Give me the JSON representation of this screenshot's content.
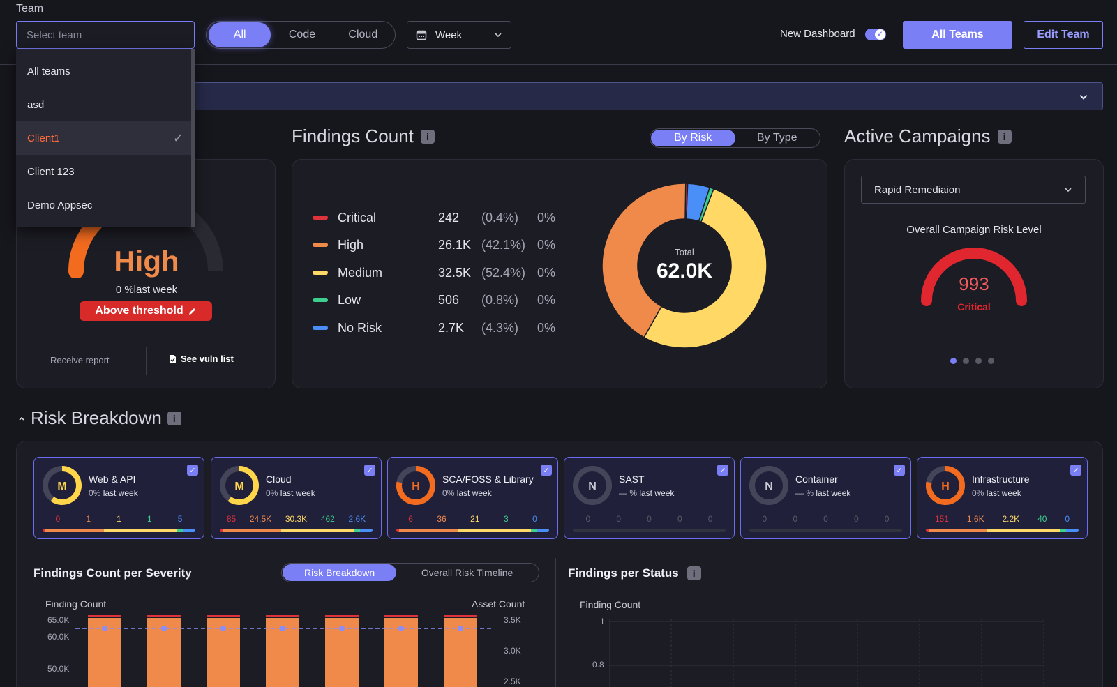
{
  "topbar": {
    "team_label": "Team",
    "team_placeholder": "Select team",
    "scopes": [
      "All",
      "Code",
      "Cloud"
    ],
    "period": "Week",
    "new_dashboard_label": "New Dashboard",
    "all_teams_button": "All Teams",
    "edit_team_button": "Edit Team"
  },
  "team_dropdown": {
    "items": [
      "All teams",
      "asd",
      "Client1",
      "Client 123",
      "Demo Appsec"
    ],
    "selected": "Client1",
    "check": "✓"
  },
  "risk_card": {
    "level": "High",
    "change": "0 %last week",
    "threshold_label": "Above threshold",
    "receive_report": "Receive report",
    "see_vuln_list": "See vuln list",
    "colors": {
      "high": "#f26b1f"
    }
  },
  "findings": {
    "title": "Findings Count",
    "info": "i",
    "toggle": [
      "By Risk",
      "By Type"
    ],
    "total_label": "Total",
    "total_value": "62.0K",
    "rows": [
      {
        "name": "Critical",
        "count": "242",
        "pct": "(0.4%)",
        "change": "0%",
        "color": "#e0323a",
        "value": 242
      },
      {
        "name": "High",
        "count": "26.1K",
        "pct": "(42.1%)",
        "change": "0%",
        "color": "#f08a4b",
        "value": 26100
      },
      {
        "name": "Medium",
        "count": "32.5K",
        "pct": "(52.4%)",
        "change": "0%",
        "color": "#ffd866",
        "value": 32500
      },
      {
        "name": "Low",
        "count": "506",
        "pct": "(0.8%)",
        "change": "0%",
        "color": "#3ccf8e",
        "value": 506
      },
      {
        "name": "No Risk",
        "count": "2.7K",
        "pct": "(4.3%)",
        "change": "0%",
        "color": "#4a8ef7",
        "value": 2700
      }
    ]
  },
  "campaigns": {
    "title": "Active Campaigns",
    "info": "i",
    "selected": "Rapid Remediaion",
    "risk_title": "Overall Campaign Risk Level",
    "score": "993",
    "score_level": "Critical",
    "color": "#e0262f"
  },
  "breakdown": {
    "title": "Risk Breakdown",
    "info": "i",
    "cards": [
      {
        "name": "Web & API",
        "letter": "M",
        "change": "0%",
        "suffix": "last week",
        "counts": [
          "0",
          "1",
          "1",
          "1",
          "5"
        ],
        "fill": 0.6,
        "color": "#ffd54a"
      },
      {
        "name": "Cloud",
        "letter": "M",
        "change": "0%",
        "suffix": "last week",
        "counts": [
          "85",
          "24.5K",
          "30.3K",
          "462",
          "2.6K"
        ],
        "fill": 0.6,
        "color": "#ffd54a"
      },
      {
        "name": "SCA/FOSS & Library",
        "letter": "H",
        "change": "0%",
        "suffix": "last week",
        "counts": [
          "6",
          "36",
          "21",
          "3",
          "0"
        ],
        "fill": 0.78,
        "color": "#f26b1f"
      },
      {
        "name": "SAST",
        "letter": "N",
        "change": "— %",
        "suffix": "last week",
        "counts": [
          "0",
          "0",
          "0",
          "0",
          "0"
        ],
        "fill": 0,
        "color": "#9a9aa6"
      },
      {
        "name": "Container",
        "letter": "N",
        "change": "— %",
        "suffix": "last week",
        "counts": [
          "0",
          "0",
          "0",
          "0",
          "0"
        ],
        "fill": 0,
        "color": "#9a9aa6"
      },
      {
        "name": "Infrastructure",
        "letter": "H",
        "change": "0%",
        "suffix": "last week",
        "counts": [
          "151",
          "1.6K",
          "2.2K",
          "40",
          "0"
        ],
        "fill": 0.78,
        "color": "#f26b1f"
      }
    ],
    "count_colors": [
      "#e0323a",
      "#f08a4b",
      "#ffd866",
      "#3ccf8e",
      "#4a8ef7"
    ]
  },
  "severity_chart": {
    "title": "Findings Count per Severity",
    "toggle": [
      "Risk Breakdown",
      "Overall Risk Timeline"
    ],
    "ylabel_left": "Finding Count",
    "ylabel_right": "Asset Count",
    "left_ticks": [
      "65.0K",
      "60.0K",
      "50.0K"
    ],
    "right_ticks": [
      "3.5K",
      "3.0K",
      "2.5K"
    ]
  },
  "status_chart": {
    "title": "Findings per Status",
    "info": "i",
    "ylabel": "Finding Count",
    "ticks": [
      "1",
      "0.8"
    ]
  },
  "chart_data": {
    "type": "pie",
    "title": "Findings Count",
    "categories": [
      "Critical",
      "High",
      "Medium",
      "Low",
      "No Risk"
    ],
    "values": [
      242,
      26100,
      32500,
      506,
      2700
    ]
  }
}
